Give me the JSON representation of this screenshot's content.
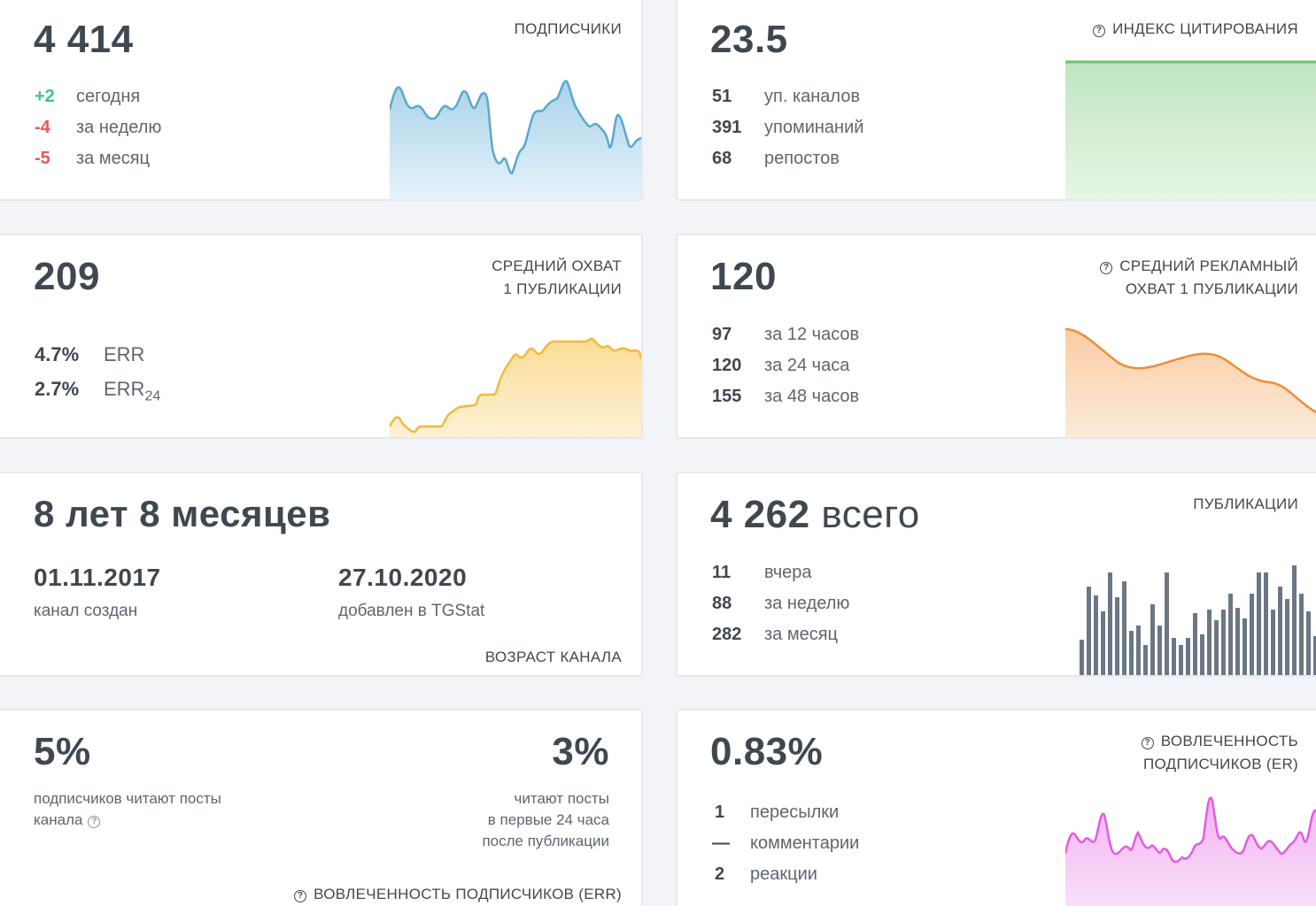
{
  "subscribers": {
    "title": "ПОДПИСЧИКИ",
    "value": "4 414",
    "rows": [
      {
        "n": "+2",
        "l": "сегодня",
        "tone": "pos"
      },
      {
        "n": "-4",
        "l": "за неделю",
        "tone": "neg"
      },
      {
        "n": "-5",
        "l": "за месяц",
        "tone": "neg"
      }
    ],
    "color": "#5aa8cf"
  },
  "citation": {
    "title": "ИНДЕКС ЦИТИРОВАНИЯ",
    "value": "23.5",
    "rows": [
      {
        "n": "51",
        "l": "уп. каналов"
      },
      {
        "n": "391",
        "l": "упоминаний"
      },
      {
        "n": "68",
        "l": "репостов"
      }
    ],
    "color": "#6cc46c"
  },
  "reach": {
    "title_line1": "СРЕДНИЙ ОХВАТ",
    "title_line2": "1 ПУБЛИКАЦИИ",
    "value": "209",
    "err_value": "4.7%",
    "err_label": "ERR",
    "err24_value": "2.7%",
    "err24_label": "ERR",
    "err24_sub": "24",
    "color": "#f2b93b"
  },
  "ad_reach": {
    "title_line1": "СРЕДНИЙ РЕКЛАМНЫЙ",
    "title_line2": "ОХВАТ 1 ПУБЛИКАЦИИ",
    "value": "120",
    "rows": [
      {
        "n": "97",
        "l": "за 12 часов"
      },
      {
        "n": "120",
        "l": "за 24 часа"
      },
      {
        "n": "155",
        "l": "за 48 часов"
      }
    ],
    "color": "#f08c38"
  },
  "age": {
    "value": "8 лет 8 месяцев",
    "created_date": "01.11.2017",
    "created_label": "канал создан",
    "added_date": "27.10.2020",
    "added_label": "добавлен в TGStat",
    "title": "ВОЗРАСТ КАНАЛА"
  },
  "posts": {
    "title": "ПУБЛИКАЦИИ",
    "value": "4 262",
    "value_suffix": "всего",
    "rows": [
      {
        "n": "11",
        "l": "вчера"
      },
      {
        "n": "88",
        "l": "за неделю"
      },
      {
        "n": "282",
        "l": "за месяц"
      }
    ],
    "color": "#6b7785"
  },
  "err_card": {
    "left_value": "5%",
    "left_line1": "подписчиков читают посты",
    "left_line2": "канала",
    "right_value": "3%",
    "right_line1": "читают посты",
    "right_line2": "в первые 24 часа",
    "right_line3": "после публикации",
    "title": "ВОВЛЕЧЕННОСТЬ ПОДПИСЧИКОВ (ERR)"
  },
  "er_card": {
    "title_line1": "ВОВЛЕЧЕННОСТЬ",
    "title_line2": "ПОДПИСЧИКОВ (ER)",
    "value": "0.83%",
    "rows": [
      {
        "n": "1",
        "l": "пересылки"
      },
      {
        "n": "—",
        "l": "комментарии"
      },
      {
        "n": "2",
        "l": "реакции"
      }
    ],
    "color": "#e05de0"
  }
}
